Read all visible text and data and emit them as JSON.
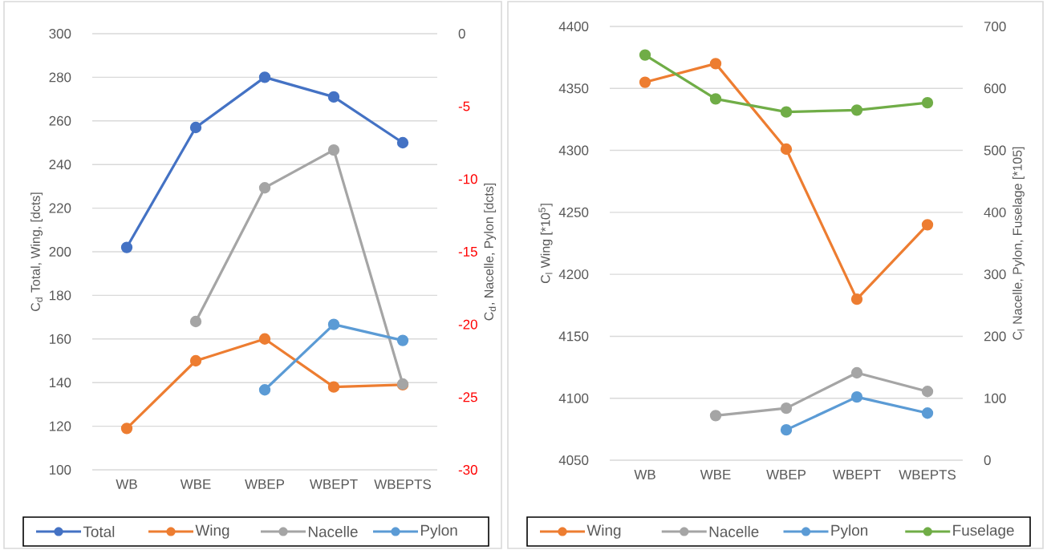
{
  "chart_data": [
    {
      "type": "line",
      "categories": [
        "WB",
        "WBE",
        "WBEP",
        "WBEPT",
        "WBEPTS"
      ],
      "ylabel": "C$_{d}$ Total, Wing, [dcts]",
      "y2label": "C$_{d}$, Nacelle,  Pylon [dcts]",
      "ylim": [
        100,
        300
      ],
      "yticks": [
        100,
        120,
        140,
        160,
        180,
        200,
        220,
        240,
        260,
        280,
        300
      ],
      "y2lim": [
        -30,
        0
      ],
      "y2ticks": [
        -30,
        -25,
        -20,
        -15,
        -10,
        -5,
        0
      ],
      "grid": "y",
      "legend": "bottom",
      "marker": "circle",
      "line_style": "solid",
      "series": [
        {
          "name": "Total",
          "color": "#4472c4",
          "axis": "y",
          "values": [
            202,
            257,
            280,
            271,
            250
          ]
        },
        {
          "name": "Wing",
          "color": "#ed7d31",
          "axis": "y",
          "values": [
            119,
            150,
            160,
            138,
            139
          ]
        },
        {
          "name": "Nacelle",
          "color": "#a5a5a5",
          "axis": "y2",
          "values": [
            null,
            -19.8,
            -10.6,
            -8.0,
            -24.1
          ]
        },
        {
          "name": "Pylon",
          "color": "#5b9bd5",
          "axis": "y2",
          "values": [
            null,
            null,
            -24.5,
            -20.0,
            -21.1
          ]
        }
      ]
    },
    {
      "type": "line",
      "categories": [
        "WB",
        "WBE",
        "WBEP",
        "WBEPT",
        "WBEPTS"
      ],
      "ylabel": "C$_{l}$ Wing [*10$^{5}$]",
      "y2label": "C$_{l}$ Nacelle,  Pylon, Fuselage [*105]",
      "ylim": [
        4050,
        4400
      ],
      "yticks": [
        4050,
        4100,
        4150,
        4200,
        4250,
        4300,
        4350,
        4400
      ],
      "y2lim": [
        0,
        700
      ],
      "y2ticks": [
        0,
        100,
        200,
        300,
        400,
        500,
        600,
        700
      ],
      "grid": "y",
      "legend": "bottom",
      "marker": "circle",
      "line_style": "solid",
      "series": [
        {
          "name": "Wing",
          "color": "#ed7d31",
          "axis": "y",
          "values": [
            4355,
            4370,
            4301,
            4180,
            4240
          ]
        },
        {
          "name": "Nacelle",
          "color": "#a5a5a5",
          "axis": "y2",
          "values": [
            null,
            72,
            84,
            141,
            111
          ]
        },
        {
          "name": "Pylon",
          "color": "#5b9bd5",
          "axis": "y2",
          "values": [
            null,
            null,
            49,
            102,
            76
          ]
        },
        {
          "name": "Fuselage",
          "color": "#70ad47",
          "axis": "y2",
          "values": [
            654,
            583,
            562,
            565,
            577
          ]
        }
      ]
    }
  ]
}
